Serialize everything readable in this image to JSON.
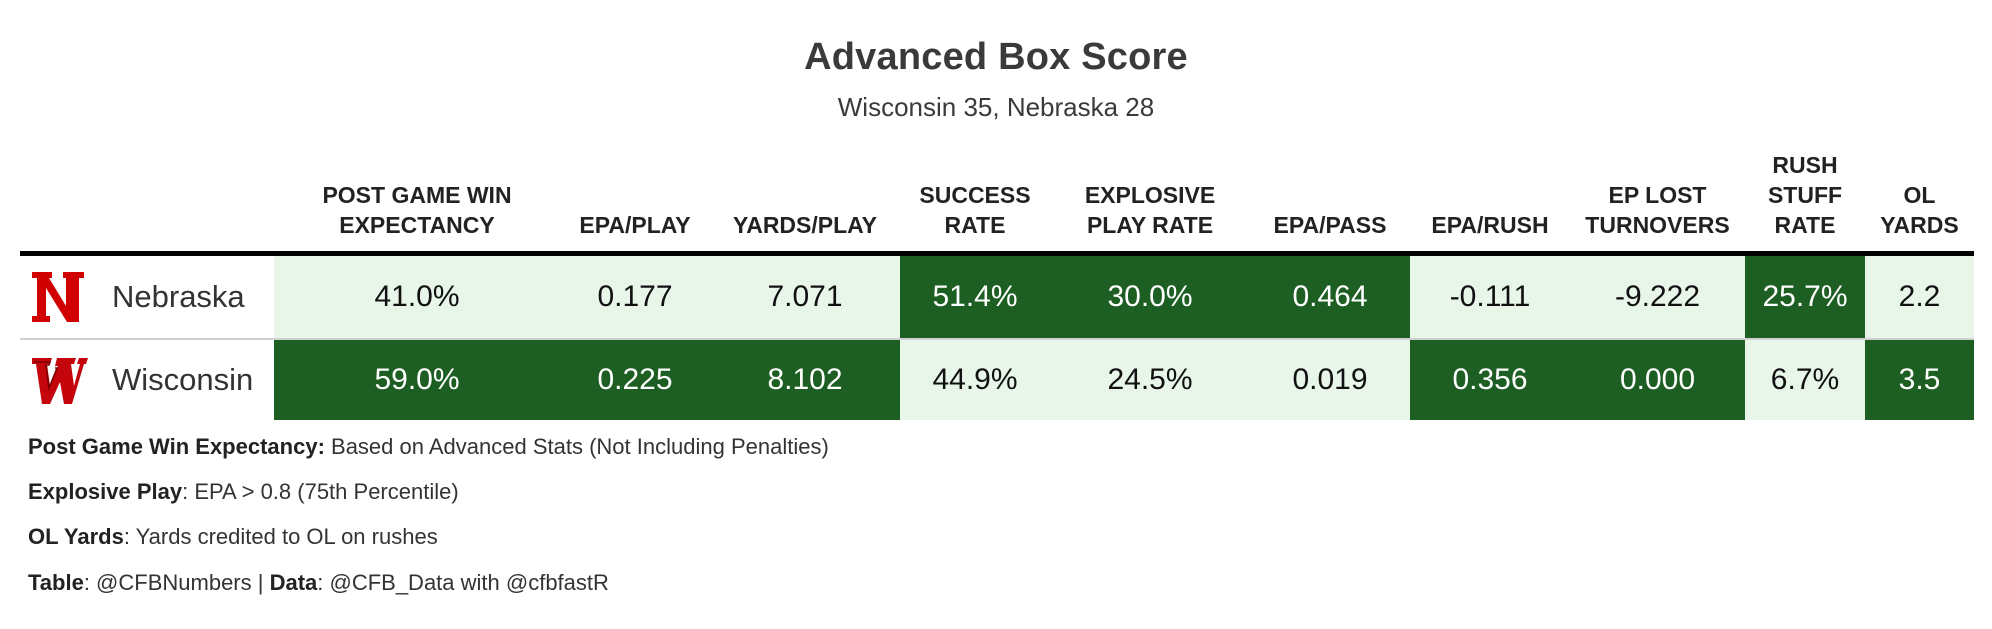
{
  "title": "Advanced Box Score",
  "subtitle": "Wisconsin 35, Nebraska 28",
  "columns": [
    {
      "line1": "POST GAME WIN",
      "line2": "EXPECTANCY",
      "line3": ""
    },
    {
      "line1": "",
      "line2": "EPA/PLAY",
      "line3": ""
    },
    {
      "line1": "",
      "line2": "YARDS/PLAY",
      "line3": ""
    },
    {
      "line1": "SUCCESS",
      "line2": "RATE",
      "line3": ""
    },
    {
      "line1": "EXPLOSIVE",
      "line2": "PLAY RATE",
      "line3": ""
    },
    {
      "line1": "",
      "line2": "EPA/PASS",
      "line3": ""
    },
    {
      "line1": "",
      "line2": "EPA/RUSH",
      "line3": ""
    },
    {
      "line1": "EP LOST",
      "line2": "TURNOVERS",
      "line3": ""
    },
    {
      "line1": "RUSH",
      "line2": "STUFF",
      "line3": "RATE"
    },
    {
      "line1": "OL",
      "line2": "YARDS",
      "line3": ""
    }
  ],
  "rows": [
    {
      "team": "Nebraska",
      "logo_icon": "nebraska-n-logo",
      "logo_color": "#d00000",
      "values": [
        "41.0%",
        "0.177",
        "7.071",
        "51.4%",
        "30.0%",
        "0.464",
        "-0.111",
        "-9.222",
        "25.7%",
        "2.2"
      ],
      "highlight": [
        "light",
        "light",
        "light",
        "dark",
        "dark",
        "dark",
        "light",
        "light",
        "dark",
        "light"
      ]
    },
    {
      "team": "Wisconsin",
      "logo_icon": "wisconsin-w-logo",
      "logo_color": "#c5050c",
      "values": [
        "59.0%",
        "0.225",
        "8.102",
        "44.9%",
        "24.5%",
        "0.019",
        "0.356",
        "0.000",
        "6.7%",
        "3.5"
      ],
      "highlight": [
        "dark",
        "dark",
        "dark",
        "light",
        "light",
        "light",
        "dark",
        "dark",
        "light",
        "dark"
      ]
    }
  ],
  "colors": {
    "dark": "#1d5e22",
    "light": "#e8f5e9"
  },
  "footnotes": [
    {
      "label": "Post Game Win Expectancy:",
      "text": " Based on Advanced Stats (Not Including Penalties)"
    },
    {
      "label": "Explosive Play",
      "text": ": EPA > 0.8 (75th Percentile)"
    },
    {
      "label": "OL Yards",
      "text": ": Yards credited to OL on rushes"
    }
  ],
  "credit": {
    "table_label": "Table",
    "table_text": ": @CFBNumbers | ",
    "data_label": "Data",
    "data_text": ": @CFB_Data with @cfbfastR"
  }
}
